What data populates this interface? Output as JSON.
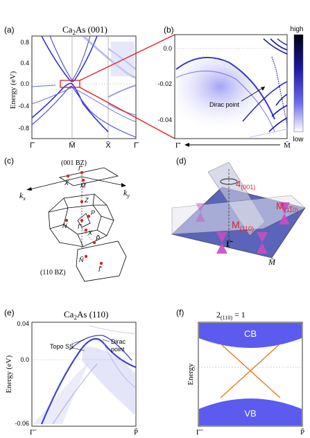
{
  "panel_a": {
    "label": "(a)",
    "title_ca": "Ca",
    "title_sub": "2",
    "title_rest": "As (001)",
    "ylabel": "Energy (eV)",
    "yticks": [
      "0.8",
      "0.4",
      "0.0",
      "-0.4",
      "-0.8"
    ],
    "xticks": [
      "Γ̄",
      "M̄",
      "X̄",
      "Γ̄"
    ]
  },
  "panel_b": {
    "label": "(b)",
    "yticks": [
      "0.0",
      "-0.02",
      "-0.04"
    ],
    "x_left": "Γ̄",
    "x_right": "M̄",
    "annotation": "Dirac point",
    "colorbar_high": "high",
    "colorbar_low": "low"
  },
  "panel_c": {
    "label": "(c)",
    "bz001": "(001 BZ)",
    "bz110": "(110 BZ)",
    "kx": "k",
    "kx_sub": "x",
    "ky": "k",
    "ky_sub": "y",
    "points": [
      "Γ̄",
      "X̄",
      "M̄",
      "Z",
      "N",
      "Γ",
      "P",
      "X",
      "P̃",
      "Ñ",
      "Γ̃"
    ]
  },
  "panel_d": {
    "label": "(d)",
    "rot_base": "4",
    "rot_sub": "(001)",
    "m1_base": "M",
    "m1_sub": "(1",
    "m1_bar": "1",
    "m1_end": "0)",
    "m2_base": "M",
    "m2_sub": "(110)",
    "gamma": "Γ̄",
    "mbar": "M̄"
  },
  "panel_e": {
    "label": "(e)",
    "title_ca": "Ca",
    "title_sub": "2",
    "title_rest": "As (110)",
    "ylabel": "Energy (eV)",
    "yticks": [
      "0.04",
      "0.0",
      "-0.06"
    ],
    "topo": "Topo SS",
    "dirac1": "Dirac",
    "dirac2": "point",
    "x_left": "Γ̃",
    "x_right": "P̃"
  },
  "panel_f": {
    "label": "(f)",
    "title": "2",
    "title_sub": "(110)",
    "title_rest": " = 1",
    "cb": "CB",
    "vb": "VB",
    "ylabel": "Energy",
    "x_left": "Γ̃",
    "x_right": "P̃"
  },
  "colors": {
    "band": "#2a2ad6",
    "band_light": "#b9b9f0",
    "fill": "#5b5bf0",
    "highlight": "#e02020",
    "orange": "#e07a20",
    "pink": "#d14fc9"
  }
}
